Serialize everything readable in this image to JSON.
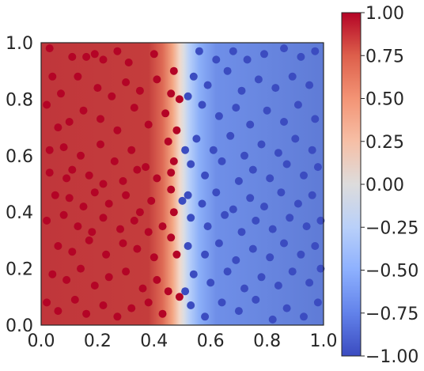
{
  "chart_data": {
    "type": "scatter",
    "title": "",
    "xlabel": "",
    "ylabel": "",
    "xlim": [
      0.0,
      1.0
    ],
    "ylim": [
      0.0,
      1.0
    ],
    "grid": false,
    "legend": "none",
    "background": {
      "type": "heatmap",
      "colormap": "coolwarm",
      "vmin": -1.0,
      "vmax": 1.0,
      "boundary_x": 0.5,
      "description_values": "left of boundary ≈ +1 (red), right ≈ -1 (blue)"
    },
    "x_ticks": [
      "0.0",
      "0.2",
      "0.4",
      "0.6",
      "0.8",
      "1.0"
    ],
    "y_ticks": [
      "0.0",
      "0.2",
      "0.4",
      "0.6",
      "0.8",
      "1.0"
    ],
    "colorbar_ticks": [
      "1.00",
      "0.75",
      "0.50",
      "0.25",
      "0.00",
      "−0.25",
      "−0.50",
      "−0.75",
      "−1.00"
    ],
    "series": [
      {
        "color": "#b40426",
        "label_value": 1,
        "points": [
          [
            0.03,
            0.98
          ],
          [
            0.11,
            0.95
          ],
          [
            0.16,
            0.95
          ],
          [
            0.19,
            0.96
          ],
          [
            0.22,
            0.94
          ],
          [
            0.27,
            0.97
          ],
          [
            0.31,
            0.93
          ],
          [
            0.4,
            0.96
          ],
          [
            0.04,
            0.88
          ],
          [
            0.07,
            0.82
          ],
          [
            0.13,
            0.88
          ],
          [
            0.2,
            0.84
          ],
          [
            0.25,
            0.81
          ],
          [
            0.3,
            0.86
          ],
          [
            0.35,
            0.83
          ],
          [
            0.41,
            0.87
          ],
          [
            0.46,
            0.82
          ],
          [
            0.49,
            0.8
          ],
          [
            0.02,
            0.78
          ],
          [
            0.06,
            0.7
          ],
          [
            0.1,
            0.72
          ],
          [
            0.15,
            0.76
          ],
          [
            0.21,
            0.73
          ],
          [
            0.27,
            0.69
          ],
          [
            0.33,
            0.77
          ],
          [
            0.38,
            0.71
          ],
          [
            0.44,
            0.75
          ],
          [
            0.03,
            0.62
          ],
          [
            0.08,
            0.63
          ],
          [
            0.14,
            0.6
          ],
          [
            0.21,
            0.64
          ],
          [
            0.26,
            0.58
          ],
          [
            0.32,
            0.62
          ],
          [
            0.37,
            0.56
          ],
          [
            0.45,
            0.65
          ],
          [
            0.47,
            0.58
          ],
          [
            0.03,
            0.54
          ],
          [
            0.09,
            0.52
          ],
          [
            0.11,
            0.55
          ],
          [
            0.17,
            0.53
          ],
          [
            0.22,
            0.5
          ],
          [
            0.29,
            0.51
          ],
          [
            0.34,
            0.55
          ],
          [
            0.41,
            0.52
          ],
          [
            0.46,
            0.54
          ],
          [
            0.05,
            0.46
          ],
          [
            0.1,
            0.45
          ],
          [
            0.15,
            0.42
          ],
          [
            0.19,
            0.47
          ],
          [
            0.24,
            0.43
          ],
          [
            0.3,
            0.46
          ],
          [
            0.35,
            0.4
          ],
          [
            0.39,
            0.44
          ],
          [
            0.46,
            0.48
          ],
          [
            0.02,
            0.37
          ],
          [
            0.08,
            0.39
          ],
          [
            0.13,
            0.35
          ],
          [
            0.18,
            0.33
          ],
          [
            0.22,
            0.38
          ],
          [
            0.28,
            0.34
          ],
          [
            0.33,
            0.37
          ],
          [
            0.38,
            0.33
          ],
          [
            0.43,
            0.35
          ],
          [
            0.06,
            0.28
          ],
          [
            0.11,
            0.26
          ],
          [
            0.17,
            0.3
          ],
          [
            0.23,
            0.25
          ],
          [
            0.29,
            0.29
          ],
          [
            0.34,
            0.27
          ],
          [
            0.4,
            0.24
          ],
          [
            0.46,
            0.31
          ],
          [
            0.48,
            0.25
          ],
          [
            0.04,
            0.18
          ],
          [
            0.09,
            0.16
          ],
          [
            0.14,
            0.2
          ],
          [
            0.19,
            0.14
          ],
          [
            0.24,
            0.17
          ],
          [
            0.3,
            0.19
          ],
          [
            0.36,
            0.13
          ],
          [
            0.41,
            0.16
          ],
          [
            0.45,
            0.12
          ],
          [
            0.02,
            0.08
          ],
          [
            0.06,
            0.05
          ],
          [
            0.12,
            0.09
          ],
          [
            0.16,
            0.04
          ],
          [
            0.22,
            0.07
          ],
          [
            0.27,
            0.03
          ],
          [
            0.32,
            0.06
          ],
          [
            0.38,
            0.08
          ],
          [
            0.43,
            0.04
          ],
          [
            0.49,
            0.1
          ],
          [
            0.47,
            0.4
          ],
          [
            0.48,
            0.69
          ],
          [
            0.47,
            0.9
          ]
        ]
      },
      {
        "color": "#3b4cc0",
        "label_value": -1,
        "points": [
          [
            0.56,
            0.97
          ],
          [
            0.62,
            0.94
          ],
          [
            0.68,
            0.97
          ],
          [
            0.73,
            0.94
          ],
          [
            0.79,
            0.96
          ],
          [
            0.86,
            0.98
          ],
          [
            0.92,
            0.95
          ],
          [
            0.97,
            0.97
          ],
          [
            0.54,
            0.88
          ],
          [
            0.59,
            0.85
          ],
          [
            0.66,
            0.9
          ],
          [
            0.71,
            0.83
          ],
          [
            0.77,
            0.87
          ],
          [
            0.83,
            0.84
          ],
          [
            0.89,
            0.88
          ],
          [
            0.95,
            0.85
          ],
          [
            0.52,
            0.81
          ],
          [
            0.57,
            0.78
          ],
          [
            0.63,
            0.74
          ],
          [
            0.69,
            0.77
          ],
          [
            0.74,
            0.71
          ],
          [
            0.8,
            0.76
          ],
          [
            0.86,
            0.72
          ],
          [
            0.91,
            0.78
          ],
          [
            0.97,
            0.73
          ],
          [
            0.55,
            0.66
          ],
          [
            0.61,
            0.62
          ],
          [
            0.67,
            0.67
          ],
          [
            0.72,
            0.6
          ],
          [
            0.78,
            0.64
          ],
          [
            0.84,
            0.61
          ],
          [
            0.9,
            0.66
          ],
          [
            0.96,
            0.62
          ],
          [
            0.53,
            0.57
          ],
          [
            0.58,
            0.53
          ],
          [
            0.64,
            0.58
          ],
          [
            0.7,
            0.51
          ],
          [
            0.75,
            0.55
          ],
          [
            0.81,
            0.52
          ],
          [
            0.87,
            0.57
          ],
          [
            0.93,
            0.53
          ],
          [
            0.98,
            0.56
          ],
          [
            0.52,
            0.46
          ],
          [
            0.57,
            0.43
          ],
          [
            0.62,
            0.47
          ],
          [
            0.68,
            0.41
          ],
          [
            0.74,
            0.45
          ],
          [
            0.79,
            0.42
          ],
          [
            0.85,
            0.47
          ],
          [
            0.91,
            0.43
          ],
          [
            0.96,
            0.46
          ],
          [
            0.53,
            0.38
          ],
          [
            0.59,
            0.35
          ],
          [
            0.65,
            0.39
          ],
          [
            0.71,
            0.33
          ],
          [
            0.76,
            0.37
          ],
          [
            0.82,
            0.34
          ],
          [
            0.88,
            0.38
          ],
          [
            0.94,
            0.35
          ],
          [
            0.99,
            0.37
          ],
          [
            0.52,
            0.28
          ],
          [
            0.58,
            0.25
          ],
          [
            0.63,
            0.29
          ],
          [
            0.69,
            0.23
          ],
          [
            0.75,
            0.27
          ],
          [
            0.81,
            0.24
          ],
          [
            0.86,
            0.29
          ],
          [
            0.92,
            0.25
          ],
          [
            0.97,
            0.28
          ],
          [
            0.54,
            0.18
          ],
          [
            0.6,
            0.15
          ],
          [
            0.66,
            0.19
          ],
          [
            0.72,
            0.13
          ],
          [
            0.78,
            0.17
          ],
          [
            0.84,
            0.14
          ],
          [
            0.89,
            0.19
          ],
          [
            0.95,
            0.15
          ],
          [
            0.99,
            0.2
          ],
          [
            0.53,
            0.07
          ],
          [
            0.58,
            0.03
          ],
          [
            0.64,
            0.08
          ],
          [
            0.7,
            0.05
          ],
          [
            0.76,
            0.09
          ],
          [
            0.82,
            0.02
          ],
          [
            0.87,
            0.06
          ],
          [
            0.93,
            0.03
          ],
          [
            0.98,
            0.08
          ],
          [
            0.51,
            0.12
          ],
          [
            0.5,
            0.44
          ],
          [
            0.51,
            0.62
          ]
        ]
      }
    ]
  }
}
